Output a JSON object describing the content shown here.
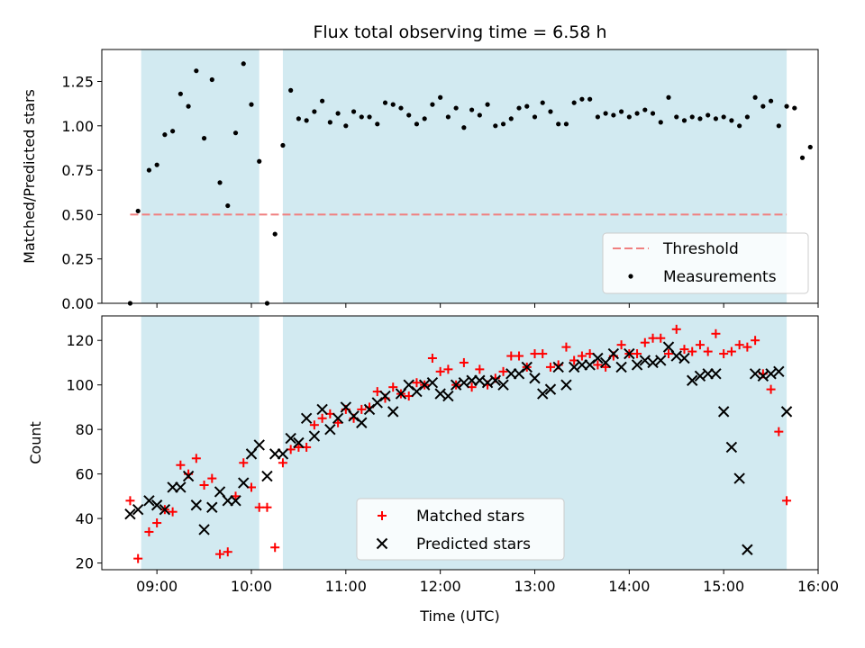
{
  "chart_data": [
    {
      "type": "scatter",
      "title": "Flux total observing time = 6.58 h",
      "ylabel": "Matched/Predicted stars",
      "xlim": [
        "08:25",
        "16:00"
      ],
      "ylim": [
        0,
        1.43
      ],
      "yticks": [
        0.0,
        0.25,
        0.5,
        0.75,
        1.0,
        1.25
      ],
      "ytick_labels": [
        "0.00",
        "0.25",
        "0.50",
        "0.75",
        "1.00",
        "1.25"
      ],
      "shaded_intervals": [
        [
          "08:50",
          "10:05"
        ],
        [
          "10:20",
          "15:40"
        ]
      ],
      "shade_color": "#add8e6",
      "threshold": 0.5,
      "threshold_color": "#f08080",
      "legend_position": "lower-right",
      "legend": [
        "Threshold",
        "Measurements"
      ],
      "series": [
        {
          "name": "Measurements",
          "color": "#000000",
          "x": [
            "08:43",
            "08:48",
            "08:55",
            "09:00",
            "09:05",
            "09:10",
            "09:15",
            "09:20",
            "09:25",
            "09:30",
            "09:35",
            "09:40",
            "09:45",
            "09:50",
            "09:55",
            "10:00",
            "10:05",
            "10:10",
            "10:15",
            "10:20",
            "10:25",
            "10:30",
            "10:35",
            "10:40",
            "10:45",
            "10:50",
            "10:55",
            "11:00",
            "11:05",
            "11:10",
            "11:15",
            "11:20",
            "11:25",
            "11:30",
            "11:35",
            "11:40",
            "11:45",
            "11:50",
            "11:55",
            "12:00",
            "12:05",
            "12:10",
            "12:15",
            "12:20",
            "12:25",
            "12:30",
            "12:35",
            "12:40",
            "12:45",
            "12:50",
            "12:55",
            "13:00",
            "13:05",
            "13:10",
            "13:15",
            "13:20",
            "13:25",
            "13:30",
            "13:35",
            "13:40",
            "13:45",
            "13:50",
            "13:55",
            "14:00",
            "14:05",
            "14:10",
            "14:15",
            "14:20",
            "14:25",
            "14:30",
            "14:35",
            "14:40",
            "14:45",
            "14:50",
            "14:55",
            "15:00",
            "15:05",
            "15:10",
            "15:15",
            "15:20",
            "15:25",
            "15:30",
            "15:35",
            "15:40"
          ],
          "y": [
            0.0,
            0.52,
            0.75,
            0.78,
            0.95,
            0.97,
            1.18,
            1.11,
            1.31,
            0.93,
            1.26,
            0.68,
            0.55,
            0.96,
            1.35,
            1.12,
            0.8,
            0.0,
            0.39,
            0.89,
            1.2,
            1.04,
            1.03,
            1.08,
            1.14,
            1.02,
            1.07,
            1.0,
            1.08,
            1.05,
            1.05,
            1.01,
            1.13,
            1.12,
            1.1,
            1.06,
            1.01,
            1.04,
            1.12,
            1.16,
            1.05,
            1.1,
            0.99,
            1.09,
            1.06,
            1.12,
            1.0,
            1.01,
            1.04,
            1.1,
            1.11,
            1.05,
            1.13,
            1.08,
            1.01,
            1.01,
            1.13,
            1.15,
            1.15,
            1.05,
            1.07,
            1.06,
            1.08,
            1.05,
            1.07,
            1.09,
            1.07,
            1.02,
            1.16,
            1.05,
            1.03,
            1.05,
            1.04,
            1.06,
            1.04,
            1.05,
            1.03,
            1.0,
            1.05,
            1.16,
            1.11,
            1.14,
            1.0,
            1.11
          ]
        }
      ],
      "extra_points": {
        "x": [
          "15:45",
          "15:50",
          "15:55"
        ],
        "y": [
          1.1,
          0.82,
          0.88
        ]
      }
    },
    {
      "type": "scatter",
      "xlabel": "Time (UTC)",
      "ylabel": "Count",
      "xlim": [
        "08:25",
        "16:00"
      ],
      "ylim": [
        17,
        131
      ],
      "xticks": [
        "09:00",
        "10:00",
        "11:00",
        "12:00",
        "13:00",
        "14:00",
        "15:00",
        "16:00"
      ],
      "yticks": [
        20,
        40,
        60,
        80,
        100,
        120
      ],
      "legend_position": "lower-center",
      "legend": [
        "Matched stars",
        "Predicted stars"
      ],
      "series": [
        {
          "name": "Matched stars",
          "color": "#ff0000",
          "marker": "plus",
          "x": [
            "08:43",
            "08:48",
            "08:55",
            "09:00",
            "09:05",
            "09:10",
            "09:15",
            "09:20",
            "09:25",
            "09:30",
            "09:35",
            "09:40",
            "09:45",
            "09:50",
            "09:55",
            "10:00",
            "10:05",
            "10:10",
            "10:15",
            "10:20",
            "10:25",
            "10:30",
            "10:35",
            "10:40",
            "10:45",
            "10:50",
            "10:55",
            "11:00",
            "11:05",
            "11:10",
            "11:15",
            "11:20",
            "11:25",
            "11:30",
            "11:35",
            "11:40",
            "11:45",
            "11:50",
            "11:55",
            "12:00",
            "12:05",
            "12:10",
            "12:15",
            "12:20",
            "12:25",
            "12:30",
            "12:35",
            "12:40",
            "12:45",
            "12:50",
            "12:55",
            "13:00",
            "13:05",
            "13:10",
            "13:15",
            "13:20",
            "13:25",
            "13:30",
            "13:35",
            "13:40",
            "13:45",
            "13:50",
            "13:55",
            "14:00",
            "14:05",
            "14:10",
            "14:15",
            "14:20",
            "14:25",
            "14:30",
            "14:35",
            "14:40",
            "14:45",
            "14:50",
            "14:55",
            "15:00",
            "15:05",
            "15:10",
            "15:15",
            "15:20",
            "15:25",
            "15:30",
            "15:35",
            "15:40"
          ],
          "y": [
            48,
            22,
            34,
            38,
            44,
            43,
            64,
            60,
            67,
            55,
            58,
            24,
            25,
            50,
            65,
            54,
            45,
            45,
            27,
            65,
            71,
            72,
            72,
            82,
            85,
            87,
            83,
            89,
            85,
            89,
            90,
            97,
            94,
            99,
            96,
            95,
            101,
            100,
            112,
            106,
            107,
            100,
            110,
            99,
            107,
            100,
            103,
            106,
            113,
            113,
            108,
            114,
            114,
            108,
            109,
            117,
            111,
            113,
            114,
            109,
            108,
            113,
            118,
            114,
            114,
            119,
            121,
            121,
            114,
            125,
            116,
            115,
            118,
            115,
            123,
            114,
            115,
            118,
            117,
            120,
            105,
            98,
            79,
            48
          ]
        },
        {
          "name": "Predicted stars",
          "color": "#000000",
          "marker": "x",
          "x": [
            "08:43",
            "08:48",
            "08:55",
            "09:00",
            "09:05",
            "09:10",
            "09:15",
            "09:20",
            "09:25",
            "09:30",
            "09:35",
            "09:40",
            "09:45",
            "09:50",
            "09:55",
            "10:00",
            "10:05",
            "10:10",
            "10:15",
            "10:20",
            "10:25",
            "10:30",
            "10:35",
            "10:40",
            "10:45",
            "10:50",
            "10:55",
            "11:00",
            "11:05",
            "11:10",
            "11:15",
            "11:20",
            "11:25",
            "11:30",
            "11:35",
            "11:40",
            "11:45",
            "11:50",
            "11:55",
            "12:00",
            "12:05",
            "12:10",
            "12:15",
            "12:20",
            "12:25",
            "12:30",
            "12:35",
            "12:40",
            "12:45",
            "12:50",
            "12:55",
            "13:00",
            "13:05",
            "13:10",
            "13:15",
            "13:20",
            "13:25",
            "13:30",
            "13:35",
            "13:40",
            "13:45",
            "13:50",
            "13:55",
            "14:00",
            "14:05",
            "14:10",
            "14:15",
            "14:20",
            "14:25",
            "14:30",
            "14:35",
            "14:40",
            "14:45",
            "14:50",
            "14:55",
            "15:00",
            "15:05",
            "15:10",
            "15:15",
            "15:20",
            "15:25",
            "15:30",
            "15:35",
            "15:40"
          ],
          "y": [
            42,
            44,
            48,
            46,
            44,
            54,
            54,
            59,
            46,
            35,
            45,
            52,
            48,
            48,
            56,
            69,
            73,
            59,
            69,
            69,
            76,
            74,
            85,
            77,
            89,
            80,
            85,
            90,
            86,
            83,
            89,
            92,
            95,
            88,
            96,
            100,
            97,
            100,
            101,
            96,
            95,
            100,
            101,
            102,
            102,
            101,
            102,
            100,
            105,
            105,
            108,
            103,
            96,
            98,
            108,
            100,
            108,
            109,
            109,
            112,
            110,
            114,
            108,
            114,
            109,
            111,
            110,
            111,
            117,
            113,
            112,
            102,
            104,
            105,
            105,
            88,
            72,
            58,
            26,
            105,
            104,
            105,
            106,
            88
          ]
        }
      ]
    }
  ]
}
